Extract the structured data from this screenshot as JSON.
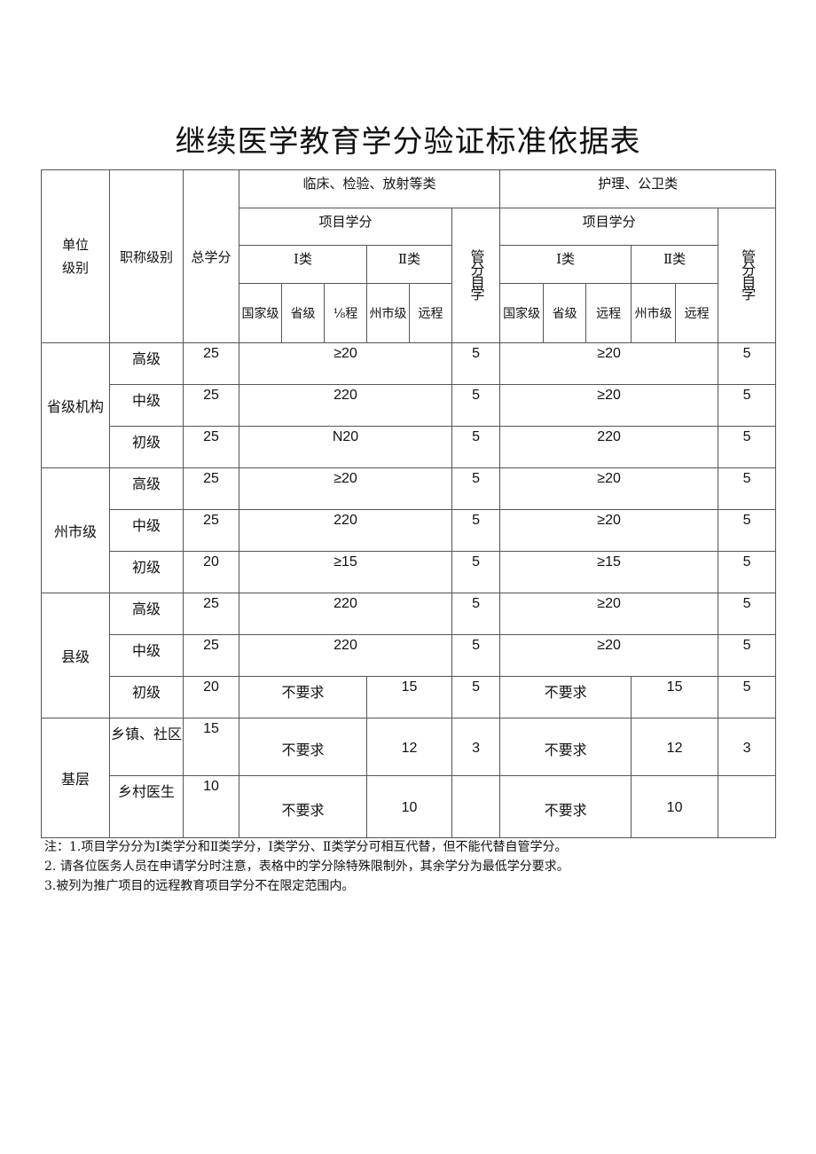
{
  "title": "继续医学教育学分验证标准依据表",
  "header": {
    "unit": "单位\n级别",
    "level": "职称级别",
    "total": "总学分",
    "clinical": "临床、检验、放射等类",
    "nursing": "护理、公卫类",
    "project": "项目学分",
    "class1": "Ⅰ类",
    "class2": "Ⅱ类",
    "self": "管分自学",
    "clinical_sub": [
      "国家级",
      "省级",
      "⅛程",
      "州市级",
      "远程"
    ],
    "nursing_sub": [
      "国家级",
      "省级",
      "远程",
      "州市级",
      "远程"
    ]
  },
  "groups": [
    {
      "unit": "省级机构",
      "rows": [
        {
          "level": "高级",
          "total": "25",
          "c": "≥20",
          "cs": "5",
          "n": "≥20",
          "ns": "5"
        },
        {
          "level": "中级",
          "total": "25",
          "c": "220",
          "cs": "5",
          "n": "≥20",
          "ns": "5"
        },
        {
          "level": "初级",
          "total": "25",
          "c": "N20",
          "cs": "5",
          "n": "220",
          "ns": "5"
        }
      ]
    },
    {
      "unit": "州市级",
      "rows": [
        {
          "level": "高级",
          "total": "25",
          "c": "≥20",
          "cs": "5",
          "n": "≥20",
          "ns": "5"
        },
        {
          "level": "中级",
          "total": "25",
          "c": "220",
          "cs": "5",
          "n": "≥20",
          "ns": "5"
        },
        {
          "level": "初级",
          "total": "20",
          "c": "≥15",
          "cs": "5",
          "n": "≥15",
          "ns": "5"
        }
      ]
    },
    {
      "unit": "县级",
      "rows": [
        {
          "level": "高级",
          "total": "25",
          "c": "220",
          "cs": "5",
          "n": "≥20",
          "ns": "5"
        },
        {
          "level": "中级",
          "total": "25",
          "c": "220",
          "cs": "5",
          "n": "≥20",
          "ns": "5"
        },
        {
          "level": "初级",
          "total": "20",
          "c1": "不要求",
          "c2": "15",
          "cs": "5",
          "n1": "不要求",
          "n2": "15",
          "ns": "5"
        }
      ]
    },
    {
      "unit": "基层",
      "rows": [
        {
          "level": "乡镇、社区",
          "total": "15",
          "c1": "不要求",
          "c2": "12",
          "cs": "3",
          "n1": "不要求",
          "n2": "12",
          "ns": "3"
        },
        {
          "level": "乡村医生",
          "total": "10",
          "c1": "不要求",
          "c2": "10",
          "cs": "",
          "n1": "不要求",
          "n2": "10",
          "ns": ""
        }
      ]
    }
  ],
  "notes": [
    "注：1.项目学分分为Ⅰ类学分和Ⅱ类学分，Ⅰ类学分、Ⅱ类学分可相互代替，但不能代替自管学分。",
    "2. 请各位医务人员在申请学分时注意，表格中的学分除特殊限制外，其余学分为最低学分要求。",
    "3.被列为推广项目的远程教育项目学分不在限定范围内。"
  ]
}
